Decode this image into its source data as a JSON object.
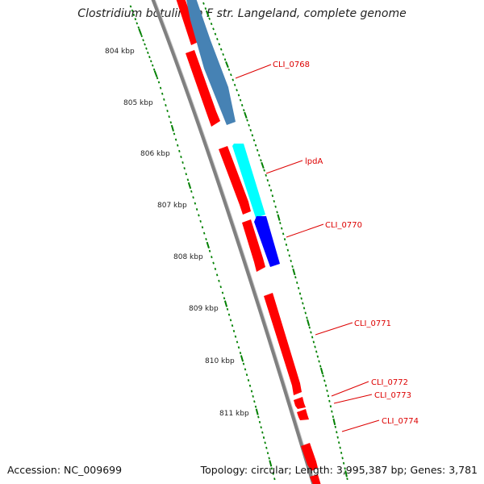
{
  "title": "Clostridium botulinum F str. Langeland, complete genome",
  "footer": {
    "accession": "Accession: NC_009699",
    "stats": "Topology: circular; Length: 3,995,387 bp; Genes: 3,781"
  },
  "ruler": {
    "labels": [
      "804 kbp",
      "805 kbp",
      "806 kbp",
      "807 kbp",
      "808 kbp",
      "809 kbp",
      "810 kbp",
      "811 kbp"
    ]
  },
  "colors": {
    "forward_gene": "#ff0000",
    "reverse_gene_1": "#4682b4",
    "reverse_gene_2": "#00ffff",
    "reverse_gene_3": "#0000ff",
    "backbone": "#808080",
    "ticks": "#008000",
    "label": "#dd0000"
  },
  "genes": [
    {
      "label": "CLI_0768"
    },
    {
      "label": "lpdA"
    },
    {
      "label": "CLI_0770"
    },
    {
      "label": "CLI_0771"
    },
    {
      "label": "CLI_0772"
    },
    {
      "label": "CLI_0773"
    },
    {
      "label": "CLI_0774"
    }
  ]
}
